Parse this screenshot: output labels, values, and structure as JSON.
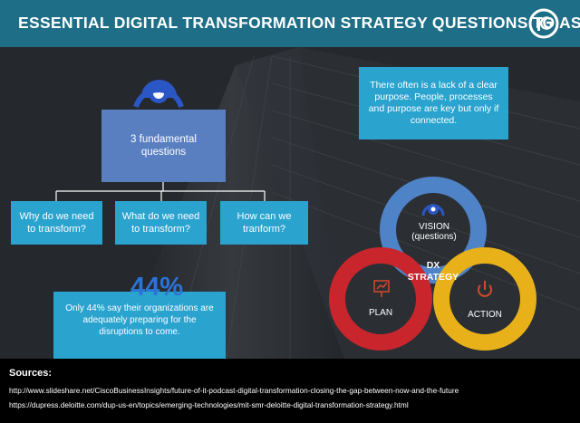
{
  "header": {
    "title": "ESSENTIAL DIGITAL TRANSFORMATION STRATEGY QUESTIONS TO ASK",
    "logo_icon": "ig-logo-icon"
  },
  "tree": {
    "main": "3 fundamental questions",
    "questions": [
      "Why do we need to transform?",
      "What do we need to transform?",
      "How can we tranform?"
    ]
  },
  "info": "There often is a lack of a clear purpose. People, processes and purpose are key but only if connected.",
  "stat": {
    "percent": "44%",
    "text": "Only 44% say their organizations are adequately preparing for the disruptions to come."
  },
  "dx": {
    "center": "DX STRATEGY",
    "vision": "VISION (questions)",
    "plan": "PLAN",
    "action": "ACTION",
    "colors": {
      "vision": "#4f83c8",
      "plan": "#c8262c",
      "action": "#e9b119"
    }
  },
  "footer": {
    "label": "Sources:",
    "sources": [
      "http://www.slideshare.net/CiscoBusinessInsights/future-of-it-podcast-digital-transformation-closing-the-gap-between-now-and-the-future",
      "https://dupress.deloitte.com/dup-us-en/topics/emerging-technologies/mit-smr-deloitte-digital-transformation-strategy.html"
    ]
  }
}
